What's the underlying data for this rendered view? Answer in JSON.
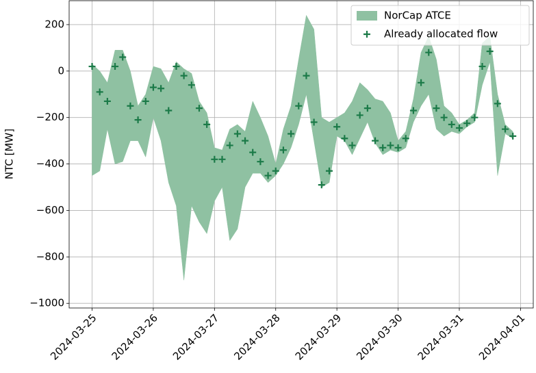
{
  "chart_data": {
    "type": "area_scatter",
    "y_label": "NTC [MW]",
    "x": [
      "2024-03-25 00:00",
      "2024-03-25 03:00",
      "2024-03-25 06:00",
      "2024-03-25 09:00",
      "2024-03-25 12:00",
      "2024-03-25 15:00",
      "2024-03-25 18:00",
      "2024-03-25 21:00",
      "2024-03-26 00:00",
      "2024-03-26 03:00",
      "2024-03-26 06:00",
      "2024-03-26 09:00",
      "2024-03-26 12:00",
      "2024-03-26 15:00",
      "2024-03-26 18:00",
      "2024-03-26 21:00",
      "2024-03-27 00:00",
      "2024-03-27 03:00",
      "2024-03-27 06:00",
      "2024-03-27 09:00",
      "2024-03-27 12:00",
      "2024-03-27 15:00",
      "2024-03-27 18:00",
      "2024-03-27 21:00",
      "2024-03-28 00:00",
      "2024-03-28 03:00",
      "2024-03-28 06:00",
      "2024-03-28 09:00",
      "2024-03-28 12:00",
      "2024-03-28 15:00",
      "2024-03-28 18:00",
      "2024-03-28 21:00",
      "2024-03-29 00:00",
      "2024-03-29 03:00",
      "2024-03-29 06:00",
      "2024-03-29 09:00",
      "2024-03-29 12:00",
      "2024-03-29 15:00",
      "2024-03-29 18:00",
      "2024-03-29 21:00",
      "2024-03-30 00:00",
      "2024-03-30 03:00",
      "2024-03-30 06:00",
      "2024-03-30 09:00",
      "2024-03-30 12:00",
      "2024-03-30 15:00",
      "2024-03-30 18:00",
      "2024-03-30 21:00",
      "2024-03-31 00:00",
      "2024-03-31 03:00",
      "2024-03-31 06:00",
      "2024-03-31 09:00",
      "2024-03-31 12:00",
      "2024-03-31 15:00",
      "2024-03-31 18:00",
      "2024-03-31 21:00"
    ],
    "series": [
      {
        "name": "NorCap ATCE",
        "type": "band",
        "color": "#8fc1a2",
        "upper": [
          30,
          0,
          -50,
          90,
          90,
          0,
          -150,
          -100,
          20,
          10,
          -50,
          40,
          10,
          -10,
          -130,
          -180,
          -330,
          -340,
          -250,
          -230,
          -260,
          -130,
          -200,
          -280,
          -400,
          -250,
          -150,
          50,
          240,
          180,
          -200,
          -220,
          -200,
          -180,
          -130,
          -50,
          -80,
          -120,
          -130,
          -180,
          -300,
          -260,
          -120,
          80,
          150,
          50,
          -150,
          -180,
          -230,
          -210,
          -180,
          120,
          150,
          -100,
          -230,
          -260
        ],
        "lower": [
          -450,
          -430,
          -250,
          -400,
          -390,
          -300,
          -300,
          -370,
          -200,
          -300,
          -480,
          -580,
          -900,
          -580,
          -650,
          -700,
          -560,
          -500,
          -730,
          -680,
          -500,
          -440,
          -440,
          -480,
          -450,
          -400,
          -330,
          -230,
          -100,
          -300,
          -500,
          -480,
          -280,
          -300,
          -360,
          -290,
          -220,
          -310,
          -360,
          -340,
          -350,
          -330,
          -220,
          -150,
          -100,
          -250,
          -280,
          -260,
          -270,
          -240,
          -220,
          -60,
          40,
          -450,
          -270,
          -290
        ]
      },
      {
        "name": "Already allocated flow",
        "type": "scatter",
        "color": "#1b7a48",
        "values": [
          20,
          -90,
          -130,
          20,
          60,
          -150,
          -210,
          -130,
          -70,
          -75,
          -170,
          20,
          -20,
          -60,
          -160,
          -230,
          -380,
          -380,
          -320,
          -270,
          -300,
          -350,
          -390,
          -450,
          -430,
          -340,
          -270,
          -150,
          -20,
          -220,
          -490,
          -430,
          -240,
          -290,
          -320,
          -190,
          -160,
          -300,
          -330,
          -320,
          -330,
          -290,
          -170,
          -50,
          80,
          -160,
          -200,
          -230,
          -245,
          -225,
          -200,
          20,
          85,
          -140,
          -250,
          -280
        ]
      }
    ],
    "xlim": [
      "2024-03-24 15:00",
      "2024-04-01 05:00"
    ],
    "xticks": [
      "2024-03-25",
      "2024-03-26",
      "2024-03-27",
      "2024-03-28",
      "2024-03-29",
      "2024-03-30",
      "2024-03-31",
      "2024-04-01"
    ],
    "ylim": [
      -1020,
      303
    ],
    "yticks": [
      {
        "value": -1000,
        "label": "−1000"
      },
      {
        "value": -800,
        "label": "−800"
      },
      {
        "value": -600,
        "label": "−600"
      },
      {
        "value": -400,
        "label": "−400"
      },
      {
        "value": -200,
        "label": "−200"
      },
      0,
      200
    ],
    "grid": true,
    "legend": "upper right"
  }
}
